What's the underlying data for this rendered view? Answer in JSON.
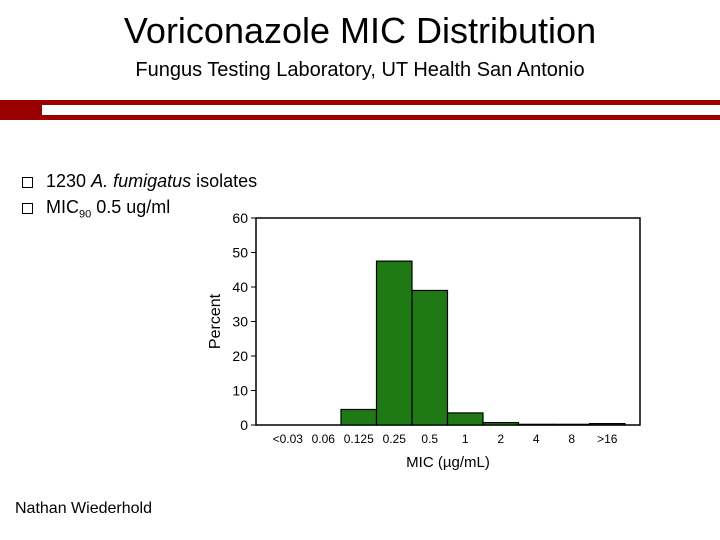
{
  "slide": {
    "title": "Voriconazole MIC Distribution",
    "subtitle": "Fungus Testing Laboratory, UT Health San Antonio",
    "accent_color": "#990000",
    "bullets": [
      {
        "count": "1230",
        "organism": "A. fumigatus",
        "suffix": "isolates"
      },
      {
        "metric": "MIC",
        "metric_sub": "90",
        "value": "0.5 ug/ml"
      }
    ],
    "author": "Nathan Wiederhold"
  },
  "chart_data": {
    "type": "bar",
    "categories": [
      "<0.03",
      "0.06",
      "0.125",
      "0.25",
      "0.5",
      "1",
      "2",
      "4",
      "8",
      ">16"
    ],
    "values": [
      0,
      0,
      4.5,
      47.5,
      39,
      3.5,
      0.7,
      0.2,
      0.2,
      0.4
    ],
    "xlabel": "MIC (µg/mL)",
    "ylabel": "Percent",
    "ylim": [
      0,
      60
    ],
    "yticks": [
      0,
      10,
      20,
      30,
      40,
      50,
      60
    ],
    "bar_color": "#1f7a16",
    "grid": false
  }
}
